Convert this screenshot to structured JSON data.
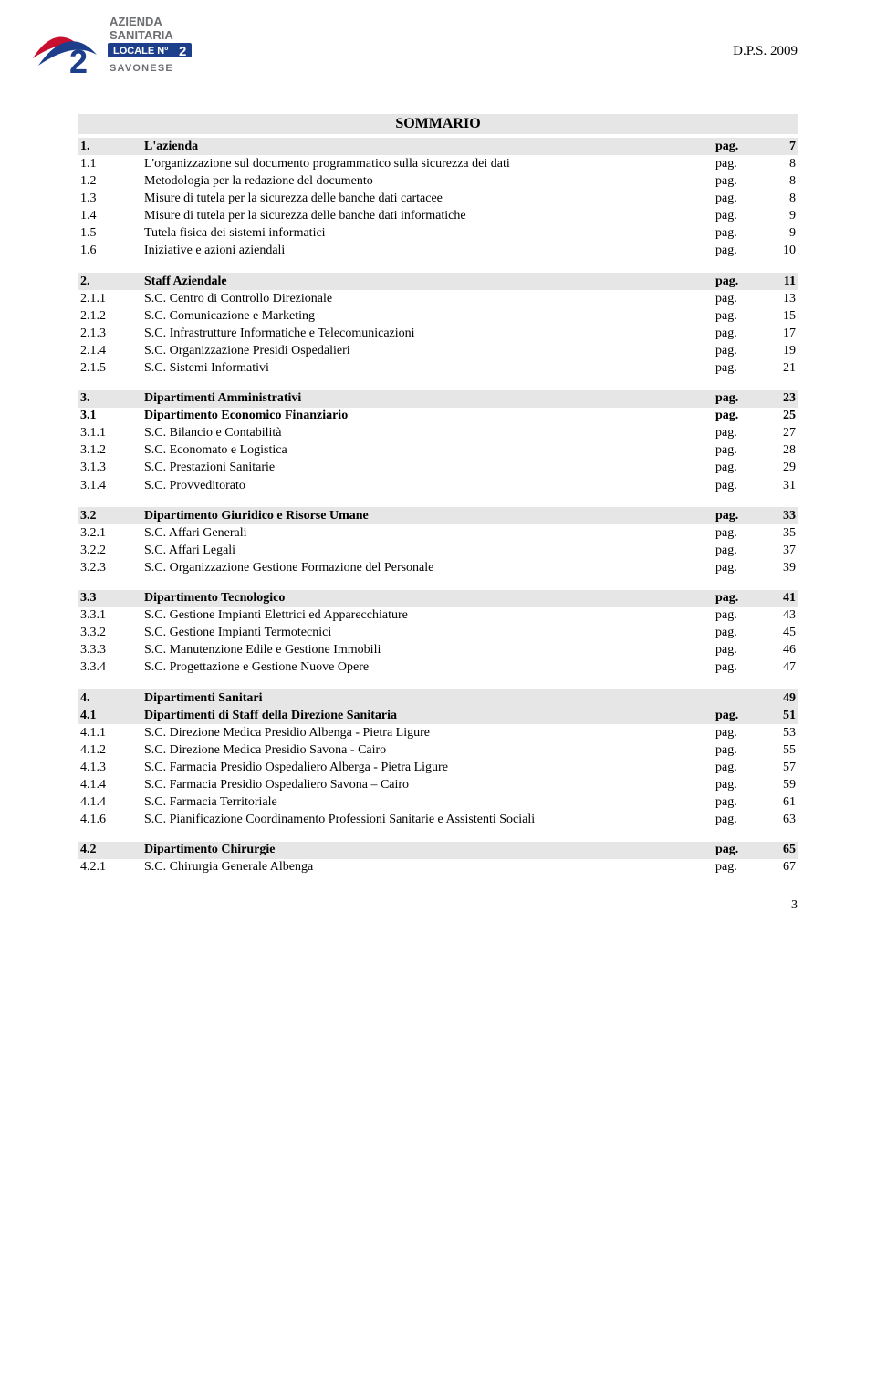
{
  "doc_ref": "D.P.S. 2009",
  "title": "SOMMARIO",
  "page_number": "3",
  "logo": {
    "brand_top": "AZIENDA",
    "brand_mid": "SANITARIA",
    "brand_local": "LOCALE Nº",
    "brand_num": "2",
    "brand_bottom": "SAVONESE",
    "red": "#c8102e",
    "blue": "#1d3f8b",
    "gray": "#6d6e71"
  },
  "colors": {
    "row_gray": "#e6e6e6",
    "text": "#000000",
    "bg": "#ffffff"
  },
  "toc": [
    {
      "num": "1.",
      "txt": "L'azienda",
      "pag": "pag.",
      "pg": "7",
      "bold": true,
      "gray": true
    },
    {
      "num": "1.1",
      "txt": "L'organizzazione sul documento programmatico sulla sicurezza dei dati",
      "pag": "pag.",
      "pg": "8"
    },
    {
      "num": "1.2",
      "txt": "Metodologia per la redazione del documento",
      "pag": "pag.",
      "pg": "8"
    },
    {
      "num": "1.3",
      "txt": "Misure di tutela per la sicurezza delle banche dati cartacee",
      "pag": "pag.",
      "pg": "8"
    },
    {
      "num": "1.4",
      "txt": "Misure di tutela per la sicurezza delle banche dati informatiche",
      "pag": "pag.",
      "pg": "9"
    },
    {
      "num": "1.5",
      "txt": "Tutela fisica dei sistemi informatici",
      "pag": "pag.",
      "pg": "9"
    },
    {
      "num": "1.6",
      "txt": "Iniziative e azioni aziendali",
      "pag": "pag.",
      "pg": "10"
    },
    {
      "spacer": true
    },
    {
      "num": "2.",
      "txt": "Staff Aziendale",
      "pag": "pag.",
      "pg": "11",
      "bold": true,
      "gray": true
    },
    {
      "num": "2.1.1",
      "txt": "S.C. Centro di Controllo Direzionale",
      "pag": "pag.",
      "pg": "13"
    },
    {
      "num": "2.1.2",
      "txt": "S.C. Comunicazione e Marketing",
      "pag": "pag.",
      "pg": "15"
    },
    {
      "num": "2.1.3",
      "txt": "S.C. Infrastrutture Informatiche e Telecomunicazioni",
      "pag": "pag.",
      "pg": "17"
    },
    {
      "num": "2.1.4",
      "txt": "S.C. Organizzazione Presidi Ospedalieri",
      "pag": "pag.",
      "pg": "19"
    },
    {
      "num": "2.1.5",
      "txt": "S.C. Sistemi Informativi",
      "pag": "pag.",
      "pg": "21"
    },
    {
      "spacer": true
    },
    {
      "num": "3.",
      "txt": "Dipartimenti Amministrativi",
      "pag": "pag.",
      "pg": "23",
      "bold": true,
      "gray": true
    },
    {
      "num": "3.1",
      "txt": "Dipartimento Economico Finanziario",
      "pag": "pag.",
      "pg": "25",
      "bold": true
    },
    {
      "num": "3.1.1",
      "txt": "S.C. Bilancio e Contabilità",
      "pag": "pag.",
      "pg": "27"
    },
    {
      "num": "3.1.2",
      "txt": "S.C. Economato e Logistica",
      "pag": "pag.",
      "pg": "28"
    },
    {
      "num": "3.1.3",
      "txt": "S.C. Prestazioni Sanitarie",
      "pag": "pag.",
      "pg": "29"
    },
    {
      "num": "3.1.4",
      "txt": "S.C. Provveditorato",
      "pag": "pag.",
      "pg": "31"
    },
    {
      "spacer": true
    },
    {
      "num": "3.2",
      "txt": "Dipartimento Giuridico e Risorse Umane",
      "pag": "pag.",
      "pg": "33",
      "bold": true,
      "gray": true
    },
    {
      "num": "3.2.1",
      "txt": "S.C. Affari Generali",
      "pag": "pag.",
      "pg": "35"
    },
    {
      "num": "3.2.2",
      "txt": "S.C. Affari Legali",
      "pag": "pag.",
      "pg": "37"
    },
    {
      "num": "3.2.3",
      "txt": "S.C. Organizzazione Gestione Formazione del Personale",
      "pag": "pag.",
      "pg": "39"
    },
    {
      "spacer": true
    },
    {
      "num": "3.3",
      "txt": "Dipartimento Tecnologico",
      "pag": "pag.",
      "pg": "41",
      "bold": true,
      "gray": true
    },
    {
      "num": "3.3.1",
      "txt": "S.C. Gestione Impianti Elettrici ed Apparecchiature",
      "pag": "pag.",
      "pg": "43"
    },
    {
      "num": "3.3.2",
      "txt": "S.C. Gestione Impianti Termotecnici",
      "pag": "pag.",
      "pg": "45"
    },
    {
      "num": "3.3.3",
      "txt": "S.C. Manutenzione Edile e Gestione Immobili",
      "pag": "pag.",
      "pg": "46"
    },
    {
      "num": "3.3.4",
      "txt": "S.C. Progettazione e Gestione Nuove Opere",
      "pag": "pag.",
      "pg": "47"
    },
    {
      "spacer": true
    },
    {
      "num": "4.",
      "txt": "Dipartimenti Sanitari",
      "pag": "",
      "pg": "49",
      "bold": true,
      "gray": true
    },
    {
      "num": "4.1",
      "txt": "Dipartimenti di Staff della Direzione Sanitaria",
      "pag": "pag.",
      "pg": "51",
      "bold": true,
      "gray": true
    },
    {
      "num": "4.1.1",
      "txt": "S.C. Direzione Medica Presidio Albenga - Pietra Ligure",
      "pag": "pag.",
      "pg": "53"
    },
    {
      "num": "4.1.2",
      "txt": "S.C. Direzione Medica Presidio Savona - Cairo",
      "pag": "pag.",
      "pg": "55"
    },
    {
      "num": "4.1.3",
      "txt": "S.C. Farmacia Presidio Ospedaliero Alberga - Pietra Ligure",
      "pag": "pag.",
      "pg": "57"
    },
    {
      "num": "4.1.4",
      "txt": "S.C. Farmacia Presidio Ospedaliero Savona – Cairo",
      "pag": "pag.",
      "pg": "59"
    },
    {
      "num": "4.1.4",
      "txt": "S.C. Farmacia Territoriale",
      "pag": "pag.",
      "pg": "61"
    },
    {
      "num": "4.1.6",
      "txt": "S.C. Pianificazione Coordinamento Professioni Sanitarie e Assistenti Sociali",
      "pag": "pag.",
      "pg": "63"
    },
    {
      "spacer": true
    },
    {
      "num": "4.2",
      "txt": "Dipartimento Chirurgie",
      "pag": "pag.",
      "pg": "65",
      "bold": true,
      "gray": true
    },
    {
      "num": "4.2.1",
      "txt": "S.C. Chirurgia Generale Albenga",
      "pag": "pag.",
      "pg": "67"
    }
  ]
}
